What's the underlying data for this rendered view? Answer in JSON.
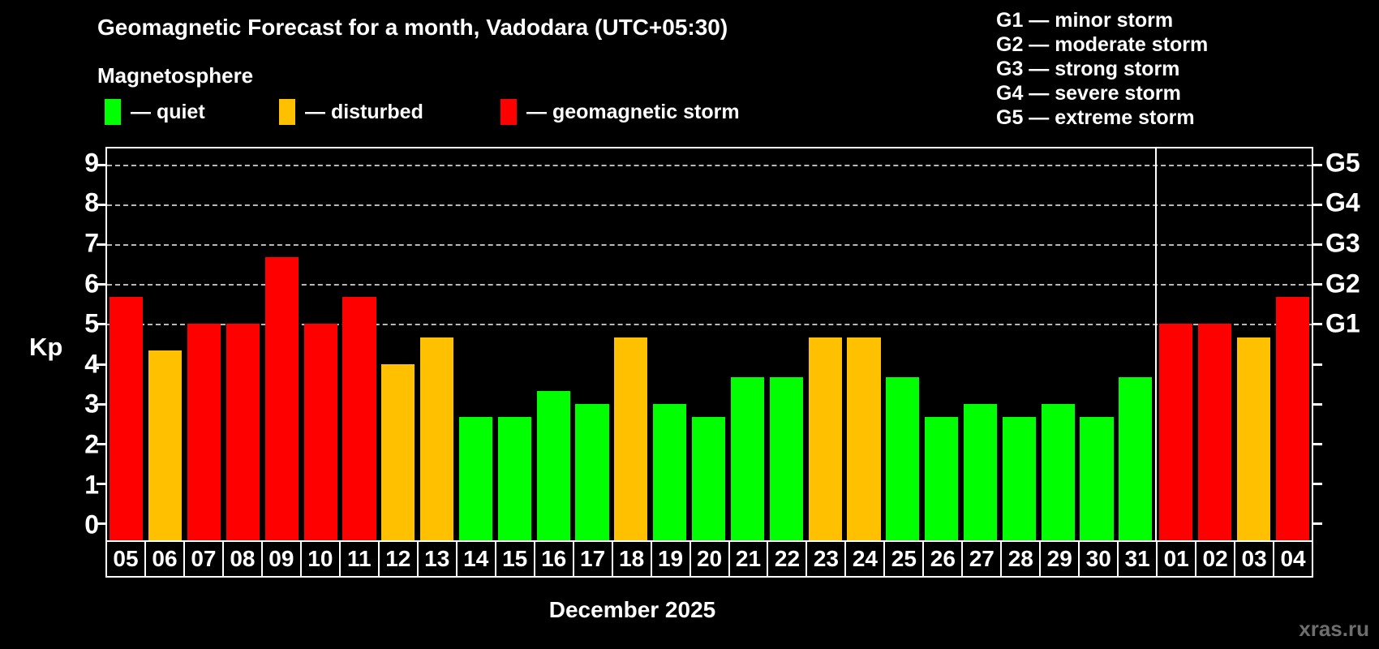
{
  "header": {
    "title": "Geomagnetic Forecast for a month, Vadodara (UTC+05:30)",
    "subtitle": "Magnetosphere",
    "legend": [
      {
        "name": "quiet",
        "label": "— quiet",
        "color": "#00ff00",
        "x": 129
      },
      {
        "name": "disturbed",
        "label": "— disturbed",
        "color": "#ffc000",
        "x": 344
      },
      {
        "name": "storm",
        "label": "— geomagnetic storm",
        "color": "#ff0000",
        "x": 617
      }
    ],
    "storm_scale": [
      "G1 — minor storm",
      "G2 — moderate storm",
      "G3 — strong storm",
      "G4 — severe storm",
      "G5 — extreme storm"
    ]
  },
  "watermark": "xras.ru",
  "chart_data": {
    "type": "bar",
    "title": "Geomagnetic Forecast for a month, Vadodara (UTC+05:30)",
    "xlabel": "December 2025",
    "ylabel": "Kp",
    "ylim": [
      -0.42,
      9.4
    ],
    "yticks": [
      0,
      1,
      2,
      3,
      4,
      5,
      6,
      7,
      8,
      9
    ],
    "gridlines": [
      5,
      6,
      7,
      8,
      9
    ],
    "grid": "horizontal dashed lines at Kp 5 through 9 only",
    "right_axis": [
      {
        "kp": 5,
        "label": "G1"
      },
      {
        "kp": 6,
        "label": "G2"
      },
      {
        "kp": 7,
        "label": "G3"
      },
      {
        "kp": 8,
        "label": "G4"
      },
      {
        "kp": 9,
        "label": "G5"
      }
    ],
    "legend_position": "top-left",
    "month_split_index": 27,
    "colors": {
      "quiet": "#00ff00",
      "disturbed": "#ffc000",
      "storm": "#ff0000"
    },
    "categories": [
      "05",
      "06",
      "07",
      "08",
      "09",
      "10",
      "11",
      "12",
      "13",
      "14",
      "15",
      "16",
      "17",
      "18",
      "19",
      "20",
      "21",
      "22",
      "23",
      "24",
      "25",
      "26",
      "27",
      "28",
      "29",
      "30",
      "31",
      "01",
      "02",
      "03",
      "04"
    ],
    "values": [
      5.67,
      4.33,
      5,
      5,
      6.67,
      5,
      5.67,
      4,
      4.67,
      2.67,
      2.67,
      3.33,
      3,
      4.67,
      3,
      2.67,
      3.67,
      3.67,
      4.67,
      4.67,
      3.67,
      2.67,
      3,
      2.67,
      3,
      2.67,
      3.67,
      5,
      5,
      4.67,
      5.67
    ],
    "status": [
      "storm",
      "disturbed",
      "storm",
      "storm",
      "storm",
      "storm",
      "storm",
      "disturbed",
      "disturbed",
      "quiet",
      "quiet",
      "quiet",
      "quiet",
      "disturbed",
      "quiet",
      "quiet",
      "quiet",
      "quiet",
      "disturbed",
      "disturbed",
      "quiet",
      "quiet",
      "quiet",
      "quiet",
      "quiet",
      "quiet",
      "quiet",
      "storm",
      "storm",
      "disturbed",
      "storm"
    ]
  }
}
